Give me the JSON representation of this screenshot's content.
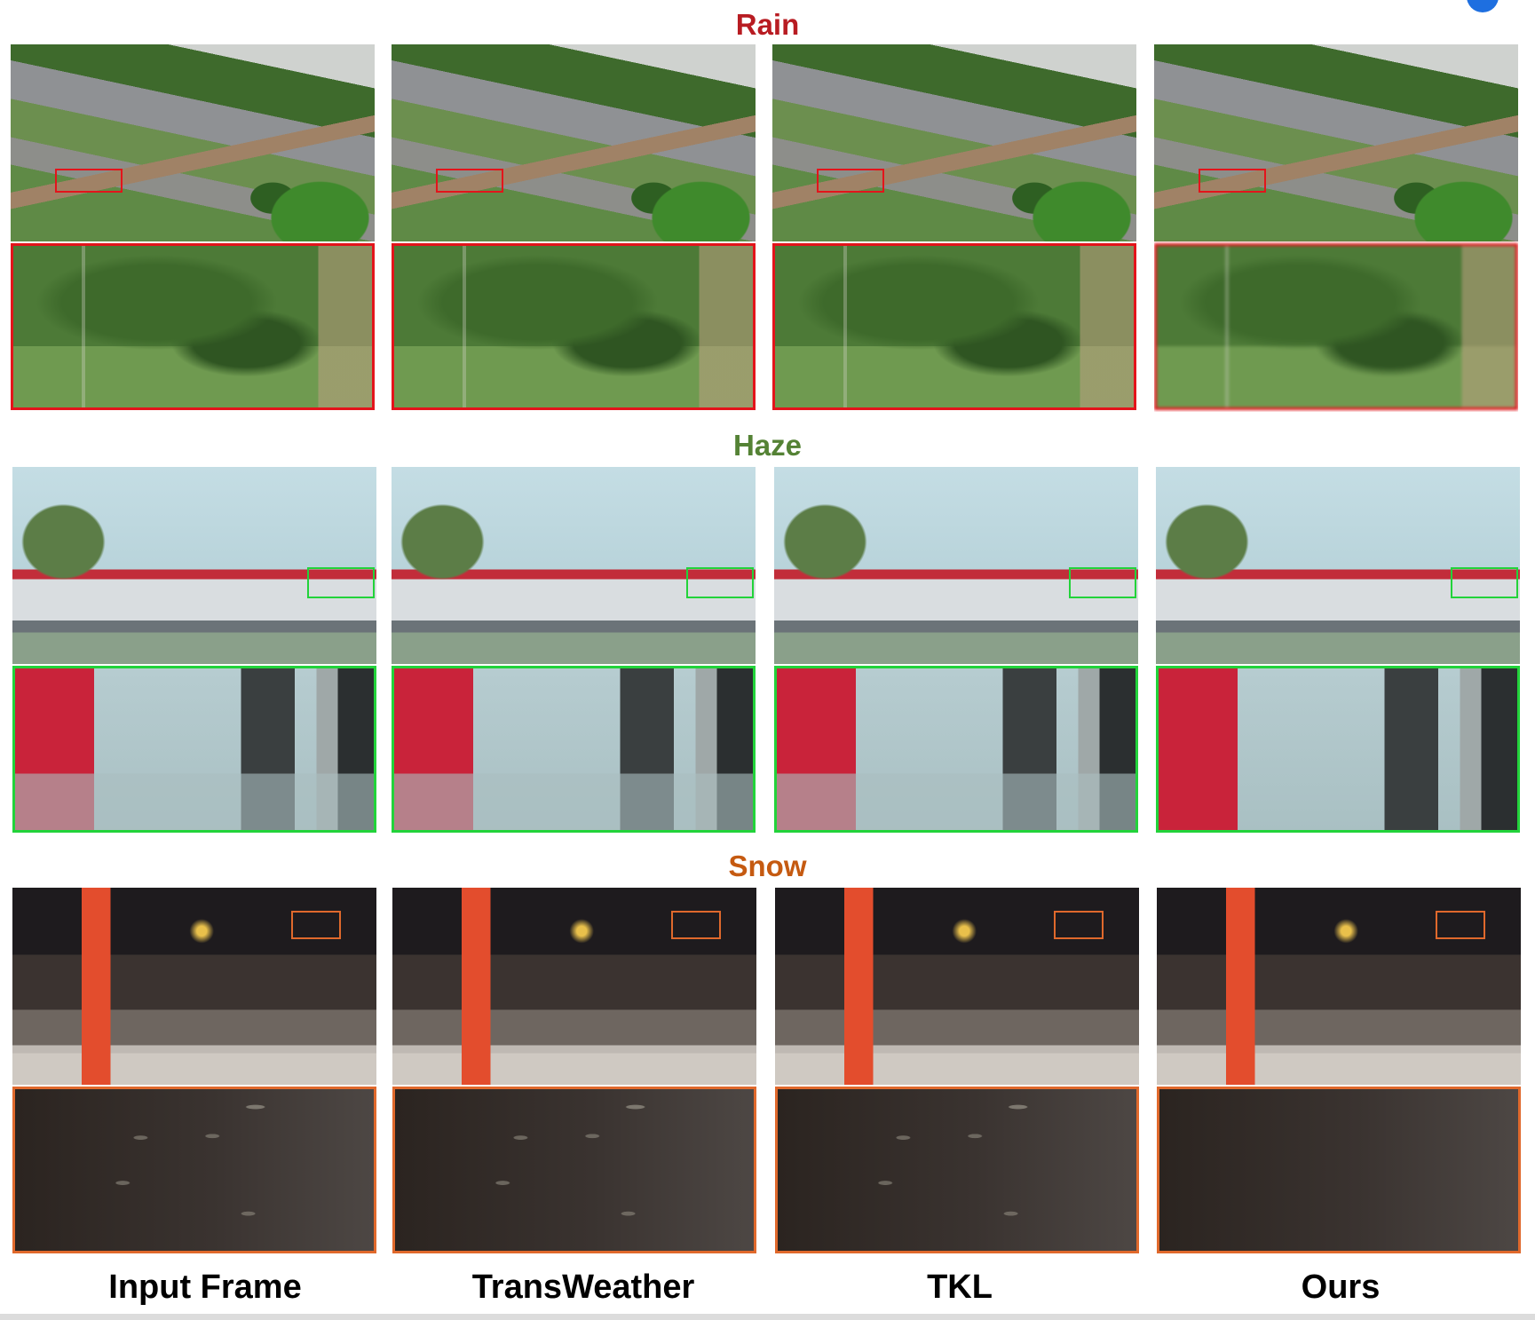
{
  "sections": [
    {
      "title": "Rain",
      "color": "#b81c22"
    },
    {
      "title": "Haze",
      "color": "#548235"
    },
    {
      "title": "Snow",
      "color": "#c55a11"
    }
  ],
  "columns": [
    "Input Frame",
    "TransWeather",
    "TKL",
    "Ours"
  ],
  "roi_colors": {
    "rain": "#e3141b",
    "haze": "#22d33a",
    "snow": "#e0692c"
  }
}
